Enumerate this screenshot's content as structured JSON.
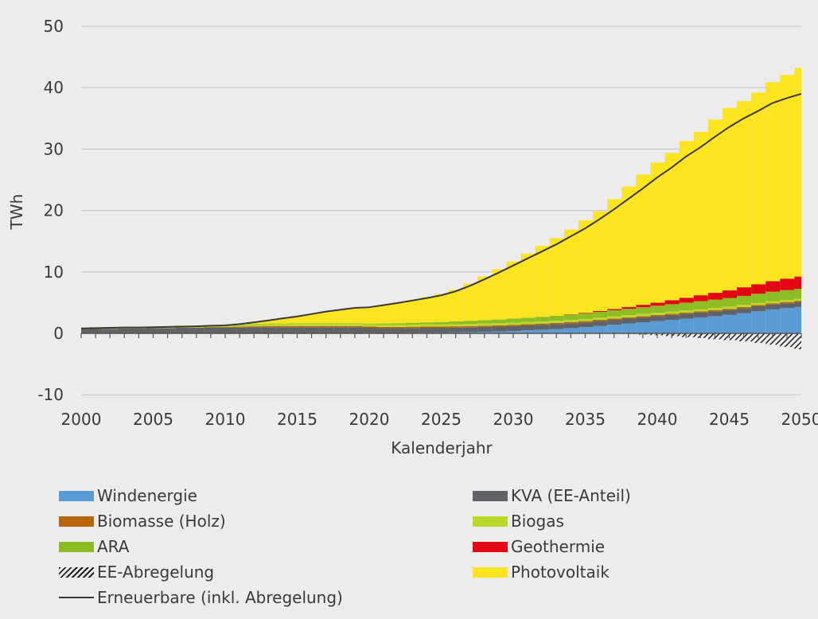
{
  "chart_data": {
    "type": "area",
    "title": "",
    "xlabel": "Kalenderjahr",
    "ylabel": "TWh",
    "xlim": [
      2000,
      2050
    ],
    "ylim": [
      -10,
      50
    ],
    "x_ticks": [
      "2000",
      "2005",
      "2010",
      "2015",
      "2020",
      "2025",
      "2030",
      "2035",
      "2040",
      "2045",
      "2050"
    ],
    "y_ticks": [
      "-10",
      "0",
      "10",
      "20",
      "30",
      "40",
      "50"
    ],
    "grid": "horizontal",
    "legend_position": "bottom",
    "x": [
      2000,
      2001,
      2002,
      2003,
      2004,
      2005,
      2006,
      2007,
      2008,
      2009,
      2010,
      2011,
      2012,
      2013,
      2014,
      2015,
      2016,
      2017,
      2018,
      2019,
      2020,
      2021,
      2022,
      2023,
      2024,
      2025,
      2026,
      2027,
      2028,
      2029,
      2030,
      2031,
      2032,
      2033,
      2034,
      2035,
      2036,
      2037,
      2038,
      2039,
      2040,
      2041,
      2042,
      2043,
      2044,
      2045,
      2046,
      2047,
      2048,
      2049,
      2050
    ],
    "series": [
      {
        "name": "Windenergie",
        "color": "#5b9bd5",
        "values": [
          0,
          0,
          0,
          0,
          0,
          0,
          0,
          0,
          0,
          0,
          0,
          0,
          0,
          0,
          0,
          0,
          0,
          0,
          0,
          0,
          0.05,
          0.05,
          0.05,
          0.08,
          0.1,
          0.1,
          0.15,
          0.2,
          0.25,
          0.3,
          0.4,
          0.5,
          0.6,
          0.7,
          0.85,
          1.0,
          1.2,
          1.4,
          1.6,
          1.8,
          2.0,
          2.2,
          2.4,
          2.6,
          2.8,
          3.0,
          3.3,
          3.6,
          3.9,
          4.1,
          4.3
        ]
      },
      {
        "name": "KVA (EE-Anteil)",
        "color": "#5f6368",
        "values": [
          0.7,
          0.75,
          0.75,
          0.8,
          0.8,
          0.85,
          0.85,
          0.9,
          0.9,
          0.95,
          0.95,
          0.95,
          1.0,
          1.0,
          1.0,
          1.0,
          1.0,
          1.0,
          1.0,
          1.0,
          0.85,
          0.8,
          0.8,
          0.8,
          0.8,
          0.8,
          0.8,
          0.8,
          0.8,
          0.8,
          0.8,
          0.8,
          0.8,
          0.8,
          0.8,
          0.8,
          0.8,
          0.8,
          0.8,
          0.8,
          0.8,
          0.8,
          0.8,
          0.8,
          0.8,
          0.8,
          0.8,
          0.8,
          0.8,
          0.8,
          0.8
        ]
      },
      {
        "name": "Biomasse (Holz)",
        "color": "#b8650a",
        "values": [
          0,
          0,
          0,
          0,
          0,
          0,
          0,
          0.05,
          0.05,
          0.1,
          0.1,
          0.15,
          0.15,
          0.2,
          0.2,
          0.2,
          0.2,
          0.2,
          0.2,
          0.2,
          0.2,
          0.2,
          0.2,
          0.2,
          0.2,
          0.2,
          0.2,
          0.2,
          0.2,
          0.2,
          0.2,
          0.2,
          0.2,
          0.2,
          0.2,
          0.2,
          0.2,
          0.2,
          0.2,
          0.2,
          0.2,
          0.2,
          0.2,
          0.2,
          0.2,
          0.2,
          0.2,
          0.2,
          0.2,
          0.2,
          0.2
        ]
      },
      {
        "name": "Biogas",
        "color": "#bada2a",
        "values": [
          0.15,
          0.15,
          0.15,
          0.15,
          0.15,
          0.15,
          0.2,
          0.2,
          0.2,
          0.2,
          0.25,
          0.25,
          0.3,
          0.3,
          0.3,
          0.35,
          0.35,
          0.35,
          0.35,
          0.35,
          0.35,
          0.35,
          0.35,
          0.35,
          0.35,
          0.35,
          0.35,
          0.35,
          0.35,
          0.35,
          0.35,
          0.35,
          0.35,
          0.35,
          0.35,
          0.35,
          0.35,
          0.35,
          0.35,
          0.35,
          0.35,
          0.35,
          0.35,
          0.35,
          0.35,
          0.35,
          0.35,
          0.35,
          0.35,
          0.35,
          0.35
        ]
      },
      {
        "name": "ARA",
        "color": "#8cbd24",
        "values": [
          0.1,
          0.1,
          0.1,
          0.1,
          0.1,
          0.1,
          0.1,
          0.1,
          0.1,
          0.1,
          0.1,
          0.1,
          0.1,
          0.1,
          0.1,
          0.1,
          0.1,
          0.1,
          0.1,
          0.1,
          0.15,
          0.2,
          0.25,
          0.3,
          0.35,
          0.4,
          0.45,
          0.5,
          0.55,
          0.6,
          0.65,
          0.7,
          0.75,
          0.8,
          0.85,
          0.9,
          0.95,
          1.0,
          1.05,
          1.1,
          1.15,
          1.2,
          1.25,
          1.3,
          1.35,
          1.4,
          1.45,
          1.5,
          1.55,
          1.6,
          1.6
        ]
      },
      {
        "name": "Geothermie",
        "color": "#e30613",
        "values": [
          0,
          0,
          0,
          0,
          0,
          0,
          0,
          0,
          0,
          0,
          0,
          0,
          0,
          0,
          0,
          0,
          0,
          0,
          0,
          0,
          0,
          0,
          0,
          0,
          0,
          0,
          0,
          0,
          0,
          0,
          0,
          0,
          0,
          0,
          0.05,
          0.1,
          0.15,
          0.2,
          0.3,
          0.4,
          0.5,
          0.65,
          0.8,
          0.95,
          1.1,
          1.25,
          1.4,
          1.55,
          1.7,
          1.85,
          2.0
        ]
      },
      {
        "name": "Photovoltaik",
        "color": "#fce51e",
        "values": [
          0,
          0,
          0,
          0,
          0,
          0,
          0,
          0,
          0,
          0,
          0.05,
          0.15,
          0.35,
          0.6,
          0.9,
          1.15,
          1.5,
          1.9,
          2.2,
          2.5,
          2.65,
          3.05,
          3.35,
          3.7,
          4.1,
          4.55,
          5.15,
          6.05,
          7.1,
          8.2,
          9.3,
          10.45,
          11.55,
          12.65,
          13.8,
          15.05,
          16.2,
          17.9,
          19.6,
          21.2,
          22.8,
          23.95,
          25.5,
          26.6,
          28.2,
          29.7,
          30.3,
          31.2,
          32.4,
          33.2,
          34.0
        ]
      },
      {
        "name": "EE-Abregelung",
        "color": "#222222",
        "pattern": "hatch",
        "values": [
          0,
          0,
          0,
          0,
          0,
          0,
          0,
          0,
          0,
          0,
          0,
          0,
          0,
          0,
          0,
          0,
          0,
          0,
          0,
          0,
          0,
          0,
          0,
          0,
          0,
          0,
          0,
          0,
          0,
          0,
          0,
          0,
          0,
          0,
          0,
          0,
          0,
          0,
          -0.1,
          -0.2,
          -0.3,
          -0.45,
          -0.6,
          -0.75,
          -0.95,
          -1.1,
          -1.3,
          -1.55,
          -1.85,
          -2.2,
          -2.6
        ]
      },
      {
        "name": "Erneuerbare (inkl. Abregelung)",
        "type": "line",
        "color": "#3a3a3a",
        "values": [
          0.8,
          0.85,
          0.9,
          0.95,
          0.95,
          1.0,
          1.05,
          1.1,
          1.15,
          1.25,
          1.3,
          1.5,
          1.8,
          2.1,
          2.45,
          2.75,
          3.15,
          3.55,
          3.85,
          4.15,
          4.25,
          4.6,
          4.95,
          5.35,
          5.75,
          6.2,
          6.85,
          7.75,
          8.8,
          9.9,
          11.05,
          12.2,
          13.35,
          14.5,
          15.8,
          17.1,
          18.6,
          20.2,
          21.9,
          23.6,
          25.4,
          27.0,
          28.8,
          30.3,
          32.0,
          33.6,
          35.0,
          36.2,
          37.5,
          38.3,
          39.0
        ]
      }
    ]
  }
}
